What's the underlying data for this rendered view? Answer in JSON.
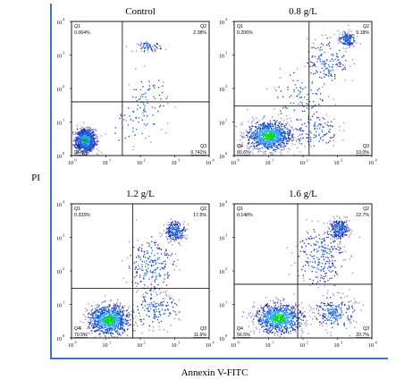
{
  "figure": {
    "y_label": "PI",
    "x_label": "Annexin V-FITC"
  },
  "chart_data": [
    {
      "type": "scatter",
      "title": "Control",
      "xscale": "log",
      "yscale": "log",
      "xlim": [
        1,
        10000
      ],
      "ylim": [
        1,
        10000
      ],
      "x_ticks": [
        "10",
        "10",
        "10",
        "10",
        "10"
      ],
      "x_tick_exponents": [
        "0",
        "1",
        "2",
        "3",
        "4"
      ],
      "y_ticks": [
        "10",
        "10",
        "10",
        "10",
        "10"
      ],
      "y_tick_exponents": [
        "0",
        "1",
        "2",
        "3",
        "4"
      ],
      "gate": [
        30,
        40
      ],
      "quadrants": [
        {
          "name": "Q1",
          "value": "0.064%"
        },
        {
          "name": "Q2",
          "value": "2.38%"
        },
        {
          "name": "Q3",
          "value": "0.741%"
        },
        {
          "name": "Q4",
          "value": "96.8%"
        }
      ],
      "clusters": [
        {
          "cx": 2.5,
          "cy": 3,
          "spread": [
            0.14,
            0.16
          ],
          "count": 950
        },
        {
          "cx": 2.1,
          "cy": 2.3,
          "spread": [
            0.25,
            0.25
          ],
          "count": 110
        },
        {
          "cx": 180,
          "cy": 1800,
          "spread": [
            0.18,
            0.07
          ],
          "count": 65
        },
        {
          "cx": 150,
          "cy": 40,
          "spread": [
            0.3,
            0.45
          ],
          "count": 75
        },
        {
          "cx": 60,
          "cy": 8,
          "spread": [
            0.35,
            0.3
          ],
          "count": 35
        }
      ]
    },
    {
      "type": "scatter",
      "title": "0.8 g/L",
      "xscale": "log",
      "yscale": "log",
      "xlim": [
        1,
        10000
      ],
      "ylim": [
        1,
        10000
      ],
      "x_ticks": [
        "10",
        "10",
        "10",
        "10",
        "10"
      ],
      "x_tick_exponents": [
        "0",
        "1",
        "2",
        "3",
        "4"
      ],
      "y_ticks": [
        "10",
        "10",
        "10",
        "10",
        "10"
      ],
      "y_tick_exponents": [
        "0",
        "1",
        "2",
        "3",
        "4"
      ],
      "gate": [
        150,
        30
      ],
      "quadrants": [
        {
          "name": "Q1",
          "value": "0.206%"
        },
        {
          "name": "Q2",
          "value": "9.18%"
        },
        {
          "name": "Q3",
          "value": "10.0%"
        },
        {
          "name": "Q4",
          "value": "80.6%"
        }
      ],
      "clusters": [
        {
          "cx": 10,
          "cy": 4,
          "spread": [
            0.32,
            0.22
          ],
          "count": 950
        },
        {
          "cx": 1800,
          "cy": 3000,
          "spread": [
            0.12,
            0.12
          ],
          "count": 150
        },
        {
          "cx": 500,
          "cy": 700,
          "spread": [
            0.3,
            0.35
          ],
          "count": 150
        },
        {
          "cx": 200,
          "cy": 6,
          "spread": [
            0.35,
            0.25
          ],
          "count": 120
        },
        {
          "cx": 80,
          "cy": 60,
          "spread": [
            0.4,
            0.4
          ],
          "count": 90
        }
      ]
    },
    {
      "type": "scatter",
      "title": "1.2 g/L",
      "xscale": "log",
      "yscale": "log",
      "xlim": [
        1,
        10000
      ],
      "ylim": [
        1,
        10000
      ],
      "x_ticks": [
        "10",
        "10",
        "10",
        "10",
        "10"
      ],
      "x_tick_exponents": [
        "0",
        "1",
        "2",
        "3",
        "4"
      ],
      "y_ticks": [
        "10",
        "10",
        "10",
        "10",
        "10"
      ],
      "y_tick_exponents": [
        "0",
        "1",
        "2",
        "3",
        "4"
      ],
      "gate": [
        60,
        30
      ],
      "quadrants": [
        {
          "name": "Q1",
          "value": "0.333%"
        },
        {
          "name": "Q2",
          "value": "17.6%"
        },
        {
          "name": "Q3",
          "value": "11.6%"
        },
        {
          "name": "Q4",
          "value": "70.5%"
        }
      ],
      "clusters": [
        {
          "cx": 12,
          "cy": 3.5,
          "spread": [
            0.3,
            0.22
          ],
          "count": 950
        },
        {
          "cx": 1000,
          "cy": 1600,
          "spread": [
            0.15,
            0.15
          ],
          "count": 230
        },
        {
          "cx": 200,
          "cy": 150,
          "spread": [
            0.35,
            0.45
          ],
          "count": 220
        },
        {
          "cx": 250,
          "cy": 7,
          "spread": [
            0.35,
            0.25
          ],
          "count": 150
        }
      ]
    },
    {
      "type": "scatter",
      "title": "1.6 g/L",
      "xscale": "log",
      "yscale": "log",
      "xlim": [
        1,
        10000
      ],
      "ylim": [
        1,
        10000
      ],
      "x_ticks": [
        "10",
        "10",
        "10",
        "10",
        "10"
      ],
      "x_tick_exponents": [
        "0",
        "1",
        "2",
        "3",
        "4"
      ],
      "y_ticks": [
        "10",
        "10",
        "10",
        "10",
        "10"
      ],
      "y_tick_exponents": [
        "0",
        "1",
        "2",
        "3",
        "4"
      ],
      "gate": [
        70,
        40
      ],
      "quadrants": [
        {
          "name": "Q1",
          "value": "0.148%"
        },
        {
          "name": "Q2",
          "value": "22.7%"
        },
        {
          "name": "Q3",
          "value": "20.7%"
        },
        {
          "name": "Q4",
          "value": "56.5%"
        }
      ],
      "clusters": [
        {
          "cx": 20,
          "cy": 4,
          "spread": [
            0.35,
            0.22
          ],
          "count": 850
        },
        {
          "cx": 1100,
          "cy": 1800,
          "spread": [
            0.15,
            0.15
          ],
          "count": 260
        },
        {
          "cx": 300,
          "cy": 300,
          "spread": [
            0.35,
            0.45
          ],
          "count": 240
        },
        {
          "cx": 800,
          "cy": 6,
          "spread": [
            0.3,
            0.25
          ],
          "count": 220
        }
      ]
    }
  ]
}
